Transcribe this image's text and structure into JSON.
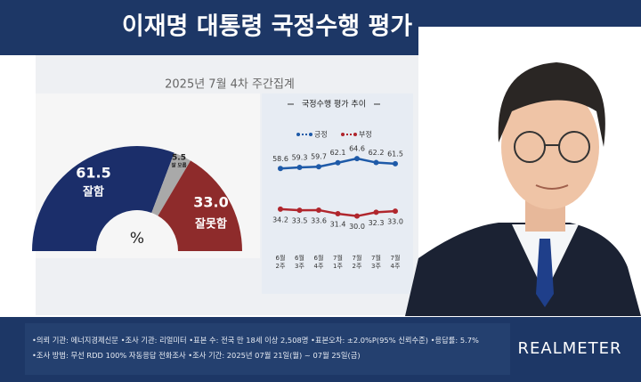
{
  "header": {
    "title": "이재명 대통령 국정수행 평가",
    "subtitle": "2025년 7월 4차 주간집계"
  },
  "chart_data": [
    {
      "type": "pie",
      "half": true,
      "categories": [
        "잘함",
        "잘 모름",
        "잘못함"
      ],
      "values": [
        61.5,
        5.5,
        33
      ],
      "value_labels": [
        "61.5",
        "5.5",
        "33.0"
      ],
      "colors": [
        "#1b2e6a",
        "#a9a9a9",
        "#8e2b2b"
      ],
      "center_label": "%"
    },
    {
      "type": "line",
      "title": "국정수행 평가 추이",
      "categories": [
        "6월 2주",
        "6월 3주",
        "6월 4주",
        "7월 1주",
        "7월 2주",
        "7월 3주",
        "7월 4주"
      ],
      "ylim": [
        10,
        85
      ],
      "series": [
        {
          "name": "긍정",
          "color": "#1e5aa8",
          "values": [
            58.6,
            59.3,
            59.7,
            62.1,
            64.6,
            62.2,
            61.5
          ]
        },
        {
          "name": "부정",
          "color": "#b0262d",
          "values": [
            34.2,
            33.5,
            33.6,
            31.4,
            30,
            32.3,
            33
          ],
          "value_labels": [
            "34.2",
            "33.5",
            "33.6",
            "31.4",
            "30.0",
            "32.3",
            "33.0"
          ]
        }
      ]
    }
  ],
  "footer": {
    "notes": [
      "•의뢰 기관: 에너지경제신문 •조사 기관: 리얼미터 •표본 수: 전국 만 18세 이상 2,508명 •표본오차: ±2.0%P(95% 신뢰수준) •응답률: 5.7%",
      "•조사 방법: 무선 RDD 100% 자동응답 전화조사 •조사 기간: 2025년 07월 21일(월) ~ 07월 25일(금)"
    ],
    "brand": "REALMETER"
  }
}
